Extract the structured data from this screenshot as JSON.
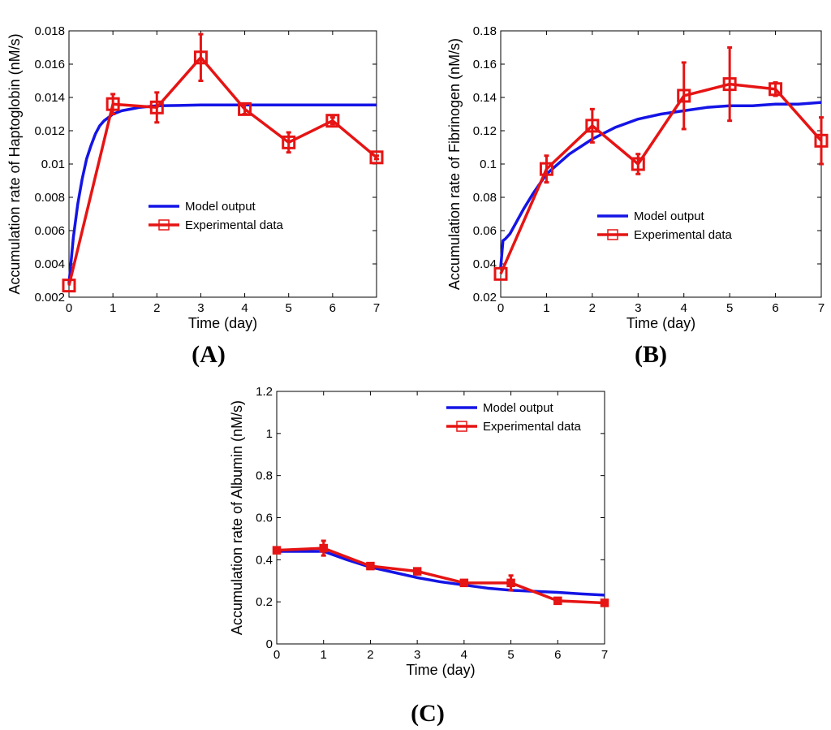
{
  "colors": {
    "model": "#1414e6",
    "experimental": "#e61414",
    "axis": "#000000"
  },
  "chart_data": [
    {
      "type": "line",
      "panel_label": "(A)",
      "xlabel": "Time (day)",
      "ylabel": "Accumulation rate of Haptoglobin (nM/s)",
      "xlim": [
        0,
        7
      ],
      "ylim": [
        0.002,
        0.018
      ],
      "xticks": [
        0,
        1,
        2,
        3,
        4,
        5,
        6,
        7
      ],
      "yticks": [
        0.002,
        0.004,
        0.006,
        0.008,
        0.01,
        0.012,
        0.014,
        0.016,
        0.018
      ],
      "ytick_labels": [
        "0.002",
        "0.004",
        "0.006",
        "0.008",
        "0.01",
        "0.012",
        "0.014",
        "0.016",
        "0.018"
      ],
      "legend_position": "center",
      "series": [
        {
          "name": "Model output",
          "kind": "model",
          "x": [
            0,
            0.1,
            0.2,
            0.3,
            0.4,
            0.5,
            0.6,
            0.7,
            0.8,
            0.9,
            1.0,
            1.2,
            1.4,
            1.6,
            1.8,
            2.0,
            2.5,
            3.0,
            3.5,
            4.0,
            5.0,
            6.0,
            7.0
          ],
          "y": [
            0.0028,
            0.0056,
            0.0076,
            0.0091,
            0.0103,
            0.0111,
            0.0118,
            0.0123,
            0.0126,
            0.0128,
            0.013,
            0.0132,
            0.0133,
            0.0134,
            0.01345,
            0.0135,
            0.01352,
            0.01355,
            0.01355,
            0.01355,
            0.01355,
            0.01355,
            0.01355
          ]
        },
        {
          "name": "Experimental data",
          "kind": "experimental",
          "marker": "square",
          "x": [
            0,
            1,
            2,
            3,
            4,
            5,
            6,
            7
          ],
          "y": [
            0.0027,
            0.0136,
            0.0134,
            0.0164,
            0.0133,
            0.0113,
            0.0126,
            0.0104
          ],
          "err": [
            0.0,
            0.0006,
            0.0009,
            0.0014,
            0.0003,
            0.0006,
            0.0002,
            0.0001
          ]
        }
      ]
    },
    {
      "type": "line",
      "panel_label": "(B)",
      "xlabel": "Time (day)",
      "ylabel": "Accumulation rate of Fibrinogen (nM/s)",
      "xlim": [
        0,
        7
      ],
      "ylim": [
        0.02,
        0.18
      ],
      "xticks": [
        0,
        1,
        2,
        3,
        4,
        5,
        6,
        7
      ],
      "yticks": [
        0.02,
        0.04,
        0.06,
        0.08,
        0.1,
        0.12,
        0.14,
        0.16,
        0.18
      ],
      "ytick_labels": [
        "0.02",
        "0.04",
        "0.06",
        "0.08",
        "0.1",
        "0.12",
        "0.14",
        "0.16",
        "0.18"
      ],
      "legend_position": "center-right",
      "series": [
        {
          "name": "Model output",
          "kind": "model",
          "x": [
            0,
            0.05,
            0.1,
            0.2,
            0.3,
            0.5,
            0.7,
            1.0,
            1.5,
            2.0,
            2.5,
            3.0,
            3.5,
            4.0,
            4.5,
            5.0,
            5.5,
            6.0,
            6.5,
            7.0
          ],
          "y": [
            0.038,
            0.054,
            0.055,
            0.058,
            0.063,
            0.073,
            0.082,
            0.094,
            0.106,
            0.115,
            0.122,
            0.127,
            0.13,
            0.132,
            0.134,
            0.135,
            0.135,
            0.136,
            0.136,
            0.137
          ]
        },
        {
          "name": "Experimental data",
          "kind": "experimental",
          "marker": "square",
          "x": [
            0,
            1,
            2,
            3,
            4,
            5,
            6,
            7
          ],
          "y": [
            0.034,
            0.097,
            0.123,
            0.1,
            0.141,
            0.148,
            0.145,
            0.114
          ],
          "err": [
            0.0,
            0.008,
            0.01,
            0.006,
            0.02,
            0.022,
            0.004,
            0.014
          ]
        }
      ]
    },
    {
      "type": "line",
      "panel_label": "(C)",
      "xlabel": "Time (day)",
      "ylabel": "Accumulation rate of Albumin (nM/s)",
      "xlim": [
        0,
        7
      ],
      "ylim": [
        0,
        1.2
      ],
      "xticks": [
        0,
        1,
        2,
        3,
        4,
        5,
        6,
        7
      ],
      "yticks": [
        0,
        0.2,
        0.4,
        0.6,
        0.8,
        1,
        1.2
      ],
      "ytick_labels": [
        "0",
        "0.2",
        "0.4",
        "0.6",
        "0.8",
        "1",
        "1.2"
      ],
      "legend_position": "top-right",
      "series": [
        {
          "name": "Model output",
          "kind": "model",
          "x": [
            0,
            0.5,
            1,
            1.5,
            2,
            2.5,
            3,
            3.5,
            4,
            4.5,
            5,
            5.5,
            6,
            6.5,
            7
          ],
          "y": [
            0.44,
            0.44,
            0.44,
            0.4,
            0.365,
            0.34,
            0.315,
            0.295,
            0.28,
            0.265,
            0.255,
            0.25,
            0.245,
            0.238,
            0.232
          ]
        },
        {
          "name": "Experimental data",
          "kind": "experimental",
          "marker": "square-small",
          "x": [
            0,
            1,
            2,
            3,
            4,
            5,
            6,
            7
          ],
          "y": [
            0.445,
            0.455,
            0.37,
            0.345,
            0.29,
            0.29,
            0.205,
            0.195
          ],
          "err": [
            0.01,
            0.035,
            0.01,
            0.01,
            0.01,
            0.035,
            0.005,
            0.005
          ]
        }
      ]
    }
  ]
}
